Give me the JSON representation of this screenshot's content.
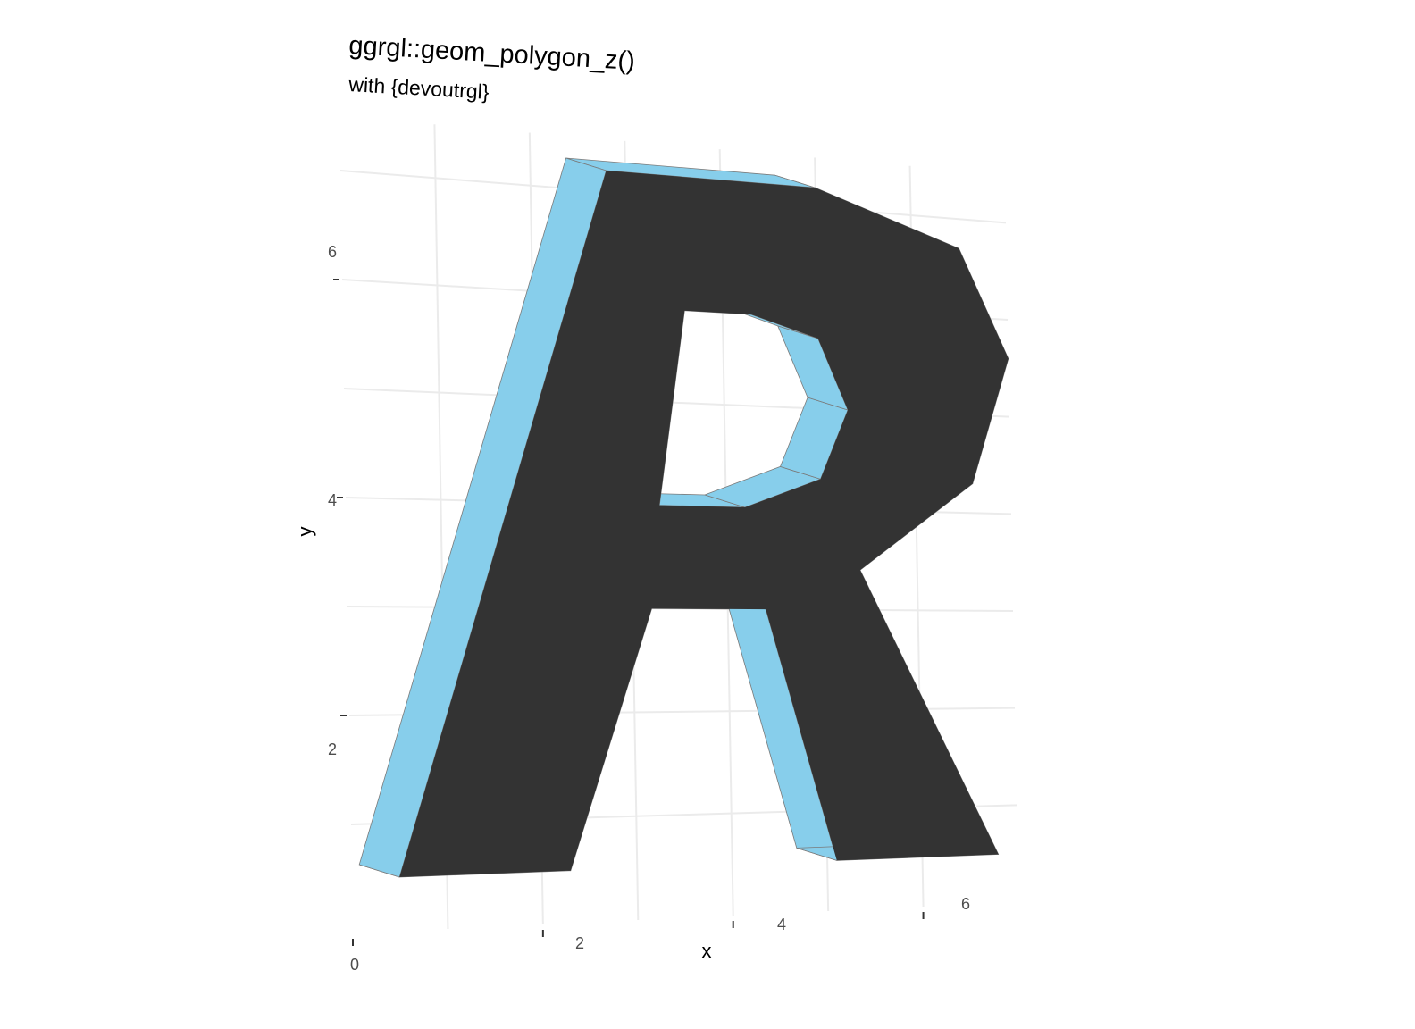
{
  "chart_data": {
    "type": "polygon-3d",
    "title": "ggrgl::geom_polygon_z()",
    "subtitle": "with {devoutrgl}",
    "xlabel": "x",
    "ylabel": "y",
    "x_ticks": [
      "0",
      "2",
      "4",
      "6"
    ],
    "y_ticks": [
      "2",
      "4",
      "6"
    ],
    "grid": true,
    "fill_front": "#333333",
    "fill_extrusion": "#87ceeb",
    "grid_color": "#ebebeb",
    "outer_outline": [
      [
        0.5,
        0.5
      ],
      [
        2.3,
        0.5
      ],
      [
        3.2,
        3.0
      ],
      [
        4.4,
        3.0
      ],
      [
        5.1,
        0.5
      ],
      [
        6.8,
        0.5
      ],
      [
        5.4,
        3.4
      ],
      [
        6.6,
        4.3
      ],
      [
        7.0,
        5.6
      ],
      [
        6.5,
        6.7
      ],
      [
        5.0,
        7.2
      ],
      [
        2.8,
        7.2
      ]
    ],
    "inner_outline": [
      [
        3.3,
        4.0
      ],
      [
        4.2,
        4.0
      ],
      [
        5.0,
        4.3
      ],
      [
        5.3,
        5.0
      ],
      [
        5.0,
        5.7
      ],
      [
        4.3,
        5.9
      ],
      [
        3.6,
        5.9
      ]
    ]
  }
}
